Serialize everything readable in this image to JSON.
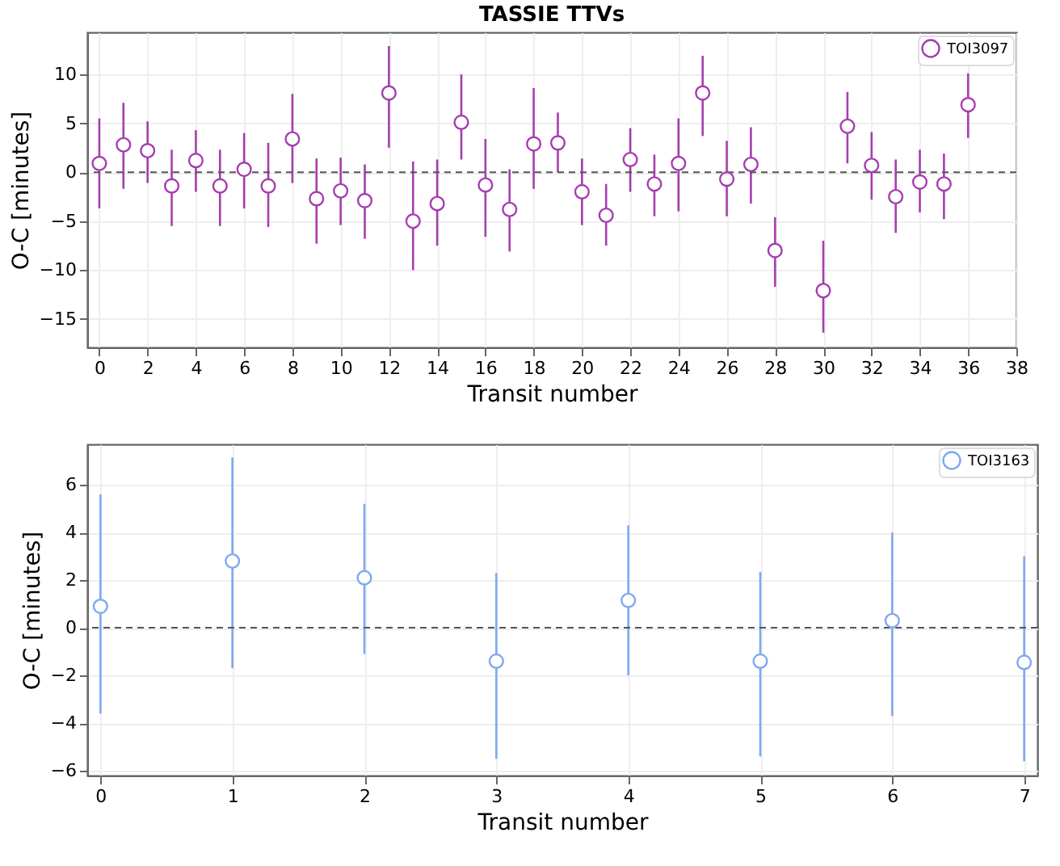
{
  "chart_data": [
    {
      "type": "scatter",
      "title": "TASSIE TTVs",
      "xlabel": "Transit number",
      "ylabel": "O-C [minutes]",
      "x": [
        0,
        1,
        2,
        3,
        4,
        5,
        6,
        7,
        8,
        9,
        10,
        11,
        12,
        13,
        14,
        15,
        16,
        17,
        18,
        19,
        20,
        21,
        22,
        23,
        24,
        25,
        26,
        27,
        28,
        30,
        31,
        32,
        33,
        34,
        35,
        36
      ],
      "series": [
        {
          "name": "TOI3097",
          "color": "#a63db0",
          "values": [
            0.9,
            2.8,
            2.2,
            -1.4,
            1.2,
            -1.4,
            0.3,
            -1.4,
            3.4,
            -2.7,
            -1.9,
            -2.9,
            8.1,
            -5.0,
            -3.2,
            5.1,
            -1.3,
            -3.8,
            2.9,
            3.0,
            -2.0,
            -4.4,
            1.3,
            -1.2,
            0.9,
            8.1,
            -0.7,
            0.8,
            -8.0,
            -12.1,
            4.7,
            0.7,
            -2.5,
            -1.0,
            -1.2,
            6.9
          ],
          "errors": [
            [
              -3.7,
              5.5
            ],
            [
              -1.7,
              7.1
            ],
            [
              -1.1,
              5.2
            ],
            [
              -5.5,
              2.3
            ],
            [
              -2.0,
              4.3
            ],
            [
              -5.5,
              2.3
            ],
            [
              -3.7,
              4.0
            ],
            [
              -5.6,
              3.0
            ],
            [
              -1.1,
              8.0
            ],
            [
              -7.3,
              1.4
            ],
            [
              -5.4,
              1.5
            ],
            [
              -6.8,
              0.8
            ],
            [
              2.5,
              12.9
            ],
            [
              -10.0,
              1.1
            ],
            [
              -7.5,
              1.3
            ],
            [
              1.3,
              10.0
            ],
            [
              -6.6,
              3.4
            ],
            [
              -8.1,
              0.3
            ],
            [
              -1.7,
              8.6
            ],
            [
              0.0,
              6.1
            ],
            [
              -5.4,
              1.4
            ],
            [
              -7.5,
              -1.2
            ],
            [
              -2.0,
              4.5
            ],
            [
              -4.5,
              1.8
            ],
            [
              -4.0,
              5.5
            ],
            [
              3.7,
              11.9
            ],
            [
              -4.5,
              3.2
            ],
            [
              -3.2,
              4.6
            ],
            [
              -11.7,
              -4.6
            ],
            [
              -16.4,
              -7.0
            ],
            [
              0.9,
              8.2
            ],
            [
              -2.8,
              4.1
            ],
            [
              -6.2,
              1.3
            ],
            [
              -4.1,
              2.3
            ],
            [
              -4.8,
              1.9
            ],
            [
              3.5,
              10.1
            ]
          ]
        }
      ],
      "xlim": [
        -0.5,
        38
      ],
      "ylim": [
        -17.9,
        14.3
      ],
      "xticks": [
        0,
        2,
        4,
        6,
        8,
        10,
        12,
        14,
        16,
        18,
        20,
        22,
        24,
        26,
        28,
        30,
        32,
        34,
        36,
        38
      ],
      "yticks": [
        -15,
        -10,
        -5,
        0,
        5,
        10
      ],
      "ref_lines": [
        {
          "axis": "y",
          "value": 0,
          "color": "#555555",
          "line_style": "dashed"
        }
      ],
      "grid": true,
      "legend": "top right",
      "marker": "circle"
    },
    {
      "type": "scatter",
      "xlabel": "Transit number",
      "ylabel": "O-C [minutes]",
      "x": [
        0,
        1,
        2,
        3,
        4,
        5,
        6,
        7
      ],
      "series": [
        {
          "name": "TOI3163",
          "color": "#7fa8f0",
          "values": [
            0.9,
            2.8,
            2.1,
            -1.4,
            1.15,
            -1.4,
            0.3,
            -1.45
          ],
          "errors": [
            [
              -3.6,
              5.6
            ],
            [
              -1.7,
              7.15
            ],
            [
              -1.1,
              5.2
            ],
            [
              -5.5,
              2.3
            ],
            [
              -2.0,
              4.3
            ],
            [
              -5.4,
              2.35
            ],
            [
              -3.7,
              4.0
            ],
            [
              -5.6,
              3.0
            ]
          ]
        }
      ],
      "xlim": [
        -0.1,
        7.1
      ],
      "ylim": [
        -6.2,
        7.7
      ],
      "xticks": [
        0,
        1,
        2,
        3,
        4,
        5,
        6,
        7
      ],
      "yticks": [
        -6,
        -4,
        -2,
        0,
        2,
        4,
        6
      ],
      "ref_lines": [
        {
          "axis": "y",
          "value": 0,
          "color": "#555555",
          "line_style": "dashed"
        }
      ],
      "grid": true,
      "legend": "top right",
      "marker": "circle"
    }
  ]
}
